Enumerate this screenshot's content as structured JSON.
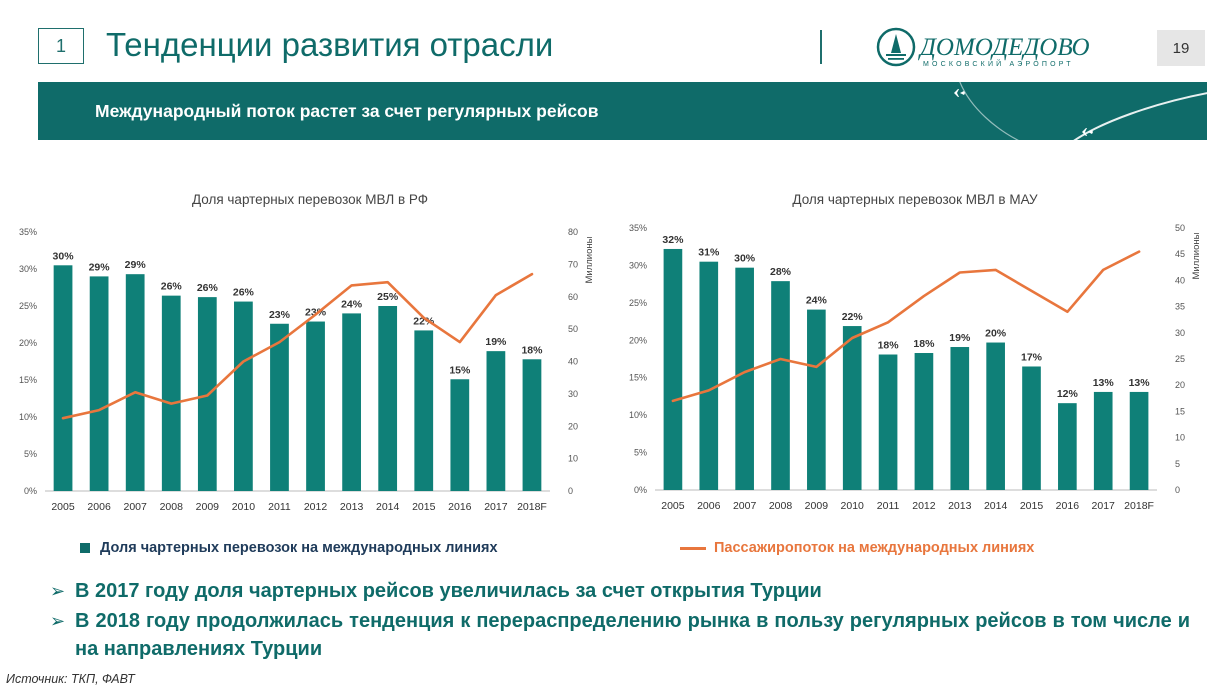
{
  "header": {
    "slide_number": "1",
    "title": "Тенденции развития отрасли",
    "logo_main": "ДОМОДЕДОВО",
    "logo_sub": "МОСКОВСКИЙ АЭРОПОРТ",
    "page_number": "19"
  },
  "banner": {
    "text": "Международный поток растет за счет регулярных рейсов"
  },
  "chart_data": [
    {
      "type": "bar",
      "title": "Доля чартерных перевозок МВЛ в РФ",
      "categories": [
        "2005",
        "2006",
        "2007",
        "2008",
        "2009",
        "2010",
        "2011",
        "2012",
        "2013",
        "2014",
        "2015",
        "2016",
        "2017",
        "2018F"
      ],
      "series": [
        {
          "name": "Доля чартерных перевозок на международных линиях",
          "axis": "left",
          "type": "bar",
          "values": [
            30.5,
            29,
            29.3,
            26.4,
            26.2,
            25.6,
            22.6,
            22.9,
            24,
            25,
            21.7,
            15.1,
            18.9,
            17.8
          ],
          "labels": [
            "30%",
            "29%",
            "29%",
            "26%",
            "26%",
            "26%",
            "23%",
            "23%",
            "24%",
            "25%",
            "22%",
            "15%",
            "19%",
            "18%"
          ]
        },
        {
          "name": "Пассажиропоток на международных линиях",
          "axis": "right",
          "type": "line",
          "values": [
            22.5,
            25,
            30.5,
            27,
            29.5,
            40,
            46,
            54.5,
            63.5,
            64.5,
            53.5,
            46,
            60.5,
            67
          ]
        }
      ],
      "ylim": [
        0,
        35
      ],
      "yticks": [
        "0%",
        "5%",
        "10%",
        "15%",
        "20%",
        "25%",
        "30%",
        "35%"
      ],
      "y2lim": [
        0,
        80
      ],
      "y2ticks": [
        "0",
        "10",
        "20",
        "30",
        "40",
        "50",
        "60",
        "70",
        "80"
      ],
      "y2label": "Миллионы",
      "grid": false
    },
    {
      "type": "bar",
      "title": "Доля чартерных перевозок МВЛ в МАУ",
      "categories": [
        "2005",
        "2006",
        "2007",
        "2008",
        "2009",
        "2010",
        "2011",
        "2012",
        "2013",
        "2014",
        "2015",
        "2016",
        "2017",
        "2018F"
      ],
      "series": [
        {
          "name": "Доля чартерных перевозок на международных линиях",
          "axis": "left",
          "type": "bar",
          "values": [
            32.2,
            30.5,
            29.7,
            27.9,
            24.1,
            21.9,
            18.1,
            18.3,
            19.1,
            19.7,
            16.5,
            11.6,
            13.1,
            13.1
          ],
          "labels": [
            "32%",
            "31%",
            "30%",
            "28%",
            "24%",
            "22%",
            "18%",
            "18%",
            "19%",
            "20%",
            "17%",
            "12%",
            "13%",
            "13%"
          ]
        },
        {
          "name": "Пассажиропоток на международных линиях",
          "axis": "right",
          "type": "line",
          "values": [
            17,
            19,
            22.5,
            25,
            23.5,
            29,
            32,
            37,
            41.5,
            42,
            38,
            34,
            42,
            45.5
          ]
        }
      ],
      "ylim": [
        0,
        35
      ],
      "yticks": [
        "0%",
        "5%",
        "10%",
        "15%",
        "20%",
        "25%",
        "30%",
        "35%"
      ],
      "y2lim": [
        0,
        50
      ],
      "y2ticks": [
        "0",
        "5",
        "10",
        "15",
        "20",
        "25",
        "30",
        "35",
        "40",
        "45",
        "50"
      ],
      "y2label": "Миллионы",
      "grid": false
    }
  ],
  "legend": {
    "bar_label": "Доля чартерных перевозок на международных линиях",
    "line_label": "Пассажиропоток на международных линиях"
  },
  "colors": {
    "bar": "#0f8078",
    "line": "#e8763d",
    "brand": "#0f6b69"
  },
  "bullets": [
    "В 2017 году доля чартерных рейсов увеличилась за счет открытия Турции",
    "В 2018 году продолжилась тенденция к перераспределению рынка в пользу регулярных рейсов в том числе и на направлениях Турции"
  ],
  "source": "Источник: ТКП, ФАВТ"
}
